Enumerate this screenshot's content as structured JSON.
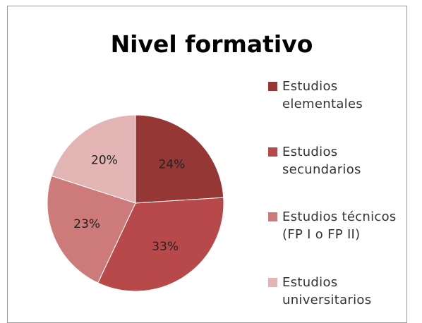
{
  "chart_data": {
    "type": "pie",
    "title": "Nivel formativo",
    "categories": [
      "Estudios elementales",
      "Estudios secundarios",
      "Estudios técnicos (FP I o FP II)",
      "Estudios universitarios"
    ],
    "values": [
      24,
      33,
      23,
      20
    ],
    "value_labels": [
      "24%",
      "33%",
      "23%",
      "20%"
    ],
    "colors": [
      "#953735",
      "#b8494a",
      "#cc7b7a",
      "#e2b5b4"
    ],
    "legend": "right"
  }
}
